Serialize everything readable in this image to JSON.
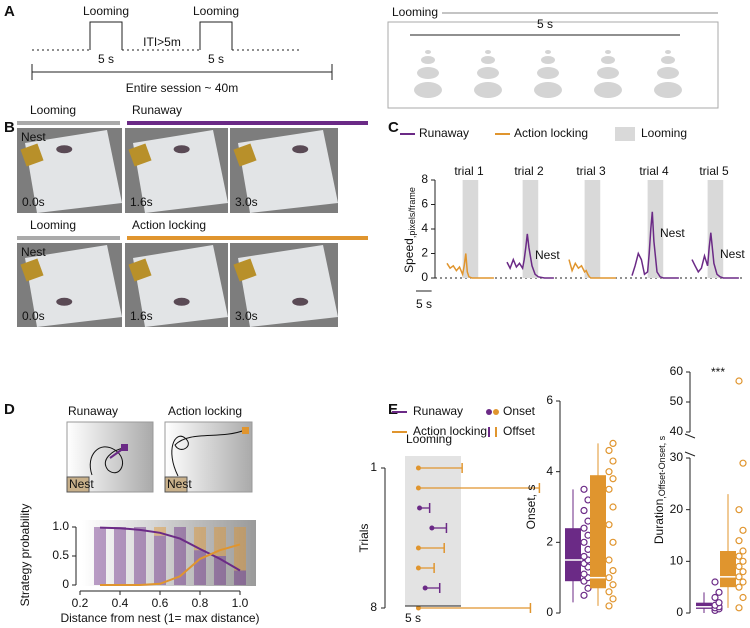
{
  "panel_labels": [
    "A",
    "B",
    "C",
    "D",
    "E"
  ],
  "panel_a": {
    "looming_1": "Looming",
    "looming_2": "Looming",
    "duration_1": "5 s",
    "duration_2": "5 s",
    "iti": "ITI>5m",
    "session": "Entire session ~ 40m",
    "schematic_title": "Looming",
    "schematic_duration": "5 s"
  },
  "panel_b": {
    "rows": [
      {
        "phase_1": "Looming",
        "phase_2": "Runaway",
        "color": "#6b2a86",
        "nest": "Nest",
        "times": [
          "0.0s",
          "1.6s",
          "3.0s"
        ]
      },
      {
        "phase_1": "Looming",
        "phase_2": "Action locking",
        "color": "#e0952e",
        "nest": "Nest",
        "times": [
          "0.0s",
          "1.6s",
          "3.0s"
        ]
      }
    ]
  },
  "chart_data": [
    {
      "type": "line",
      "legend": [
        {
          "name": "Runaway",
          "color": "#6b2a86"
        },
        {
          "name": "Action locking",
          "color": "#e0952e"
        },
        {
          "name": "Looming",
          "color": "#d9d9d9"
        }
      ],
      "ylabel": "Speed",
      "ylabel_subscript": ",pixels/frame",
      "ylim": [
        0,
        8
      ],
      "yticks": [
        0,
        2,
        4,
        6,
        8
      ],
      "xlim": [
        -5,
        11
      ],
      "looming_window": [
        0,
        5
      ],
      "scale_bar": {
        "value": 5,
        "label": "5 s"
      },
      "x": [
        -5,
        -4,
        -3,
        -2,
        -1,
        0,
        0.5,
        1,
        1.5,
        2,
        3,
        4,
        5,
        7,
        10
      ],
      "series": [
        {
          "name": "trial 1",
          "color": "#e0952e",
          "values": [
            1.2,
            0.8,
            1.0,
            0.6,
            0.9,
            0.3,
            1.0,
            2.0,
            0.5,
            0.1,
            0,
            0,
            0,
            0,
            0
          ]
        },
        {
          "name": "trial 2",
          "color": "#6b2a86",
          "annotation": "Nest",
          "values": [
            1.3,
            0.8,
            1.5,
            0.9,
            1.2,
            0.8,
            1.5,
            2.5,
            3.6,
            2.5,
            1.0,
            0.3,
            0.1,
            0,
            0
          ]
        },
        {
          "name": "trial 3",
          "color": "#e0952e",
          "values": [
            1.5,
            0.6,
            1.2,
            0.8,
            1.0,
            0.5,
            0.6,
            0.3,
            0.1,
            0,
            0,
            0,
            0,
            0,
            0
          ]
        },
        {
          "name": "trial 4",
          "color": "#6b2a86",
          "annotation": "Nest",
          "values": [
            0.2,
            1.0,
            2.0,
            1.5,
            0.3,
            0.5,
            2.0,
            4.0,
            5.4,
            3.0,
            0.5,
            0.1,
            0,
            0,
            0
          ]
        },
        {
          "name": "trial 5",
          "color": "#6b2a86",
          "annotation": "Nest",
          "values": [
            1.5,
            1.0,
            0.5,
            0.8,
            1.8,
            1.0,
            2.5,
            3.7,
            2.5,
            1.2,
            0.3,
            0.1,
            0,
            0,
            0
          ]
        }
      ]
    },
    {
      "type": "stacked_bar",
      "titles": [
        "Runaway",
        "Action locking"
      ],
      "nest_labels": [
        "Nest",
        "Nest"
      ],
      "xlabel": "Distance from nest (1= max distance)",
      "ylabel": "Strategy probability",
      "x": [
        0.3,
        0.4,
        0.5,
        0.6,
        0.7,
        0.8,
        0.9,
        1.0
      ],
      "bar_width": 0.06,
      "xlim": [
        0.2,
        1.05
      ],
      "xticks": [
        0.2,
        0.4,
        0.6,
        0.8,
        {
          "value": 1,
          "label": "1.0"
        }
      ],
      "ylim": [
        0,
        1.05
      ],
      "yticks": [
        0,
        0.5,
        {
          "value": 1,
          "label": "1.0"
        }
      ],
      "series": [
        {
          "name": "Runaway",
          "color": "#6b2a86",
          "values": [
            1,
            1,
            1,
            0.85,
            1,
            0.6,
            0.5,
            0.25
          ],
          "fit": [
            0.99,
            0.98,
            0.95,
            0.9,
            0.8,
            0.62,
            0.45,
            0.25
          ]
        },
        {
          "name": "Action locking",
          "color": "#e0952e",
          "values": [
            0,
            0,
            0,
            0.15,
            0,
            0.4,
            0.5,
            0.75
          ],
          "fit": [
            0,
            0,
            0,
            0.02,
            0.15,
            0.45,
            0.6,
            0.7
          ]
        }
      ]
    },
    {
      "type": "interval",
      "legend": [
        {
          "name": "Runaway",
          "color": "#6b2a86"
        },
        {
          "name": "Action locking",
          "color": "#e0952e"
        }
      ],
      "onset_label": "Onset",
      "offset_label": "Offset",
      "ylabel": "Trials",
      "yticks": [
        1,
        8
      ],
      "looming_label": "Looming",
      "xlim": [
        0,
        13
      ],
      "looming_window": [
        0,
        5
      ],
      "scale_bar": {
        "value": 5,
        "label": "5 s"
      },
      "trials": [
        {
          "color": "#e0952e",
          "onset": 1.2,
          "offset": 5.1
        },
        {
          "color": "#e0952e",
          "onset": 1.2,
          "offset": 12
        },
        {
          "color": "#6b2a86",
          "onset": 1.3,
          "offset": 2.2
        },
        {
          "color": "#6b2a86",
          "onset": 2.4,
          "offset": 3.7
        },
        {
          "color": "#e0952e",
          "onset": 1.2,
          "offset": 3.5
        },
        {
          "color": "#e0952e",
          "onset": 1.2,
          "offset": 2.6
        },
        {
          "color": "#6b2a86",
          "onset": 1.8,
          "offset": 3.1
        },
        {
          "color": "#e0952e",
          "onset": 1.2,
          "offset": 11.2
        }
      ]
    },
    {
      "type": "box",
      "ylabel": "Onset, s",
      "ylim": [
        0,
        6
      ],
      "yticks": [
        0,
        2,
        4,
        6
      ],
      "series": [
        {
          "color": "#6b2a86",
          "whisker_low": 0.3,
          "q1": 0.9,
          "median": 1.5,
          "q3": 2.4,
          "whisker_high": 3.5,
          "points": [
            0.5,
            0.7,
            0.9,
            1.0,
            1.1,
            1.3,
            1.4,
            1.5,
            1.6,
            1.8,
            2.0,
            2.2,
            2.4,
            2.6,
            2.9,
            3.2,
            3.5
          ]
        },
        {
          "color": "#e0952e",
          "whisker_low": 0.2,
          "q1": 0.7,
          "median": 1.0,
          "q3": 3.9,
          "whisker_high": 4.8,
          "points": [
            0.2,
            0.4,
            0.6,
            0.8,
            1.0,
            1.2,
            1.5,
            2.0,
            2.5,
            3.0,
            3.5,
            3.8,
            4.0,
            4.3,
            4.6,
            4.8
          ]
        }
      ]
    },
    {
      "type": "box",
      "ylabel": "Duration",
      "ylabel_subscript": ",Offset-Onset, s",
      "annotation": "***",
      "ylim": [
        0,
        60
      ],
      "axis_break": [
        30,
        40
      ],
      "yticks": [
        0,
        10,
        20,
        30,
        40,
        50,
        60
      ],
      "series": [
        {
          "color": "#6b2a86",
          "whisker_low": 0,
          "q1": 0.8,
          "median": 1.2,
          "q3": 2.0,
          "whisker_high": 4,
          "points": [
            0.5,
            0.8,
            1.0,
            1.2,
            1.5,
            2.0,
            3.0,
            4.0,
            6.0
          ]
        },
        {
          "color": "#e0952e",
          "whisker_low": 1,
          "q1": 5,
          "median": 7,
          "q3": 12,
          "whisker_high": 23,
          "points": [
            1,
            3,
            5,
            6,
            7,
            8,
            9,
            10,
            11,
            12,
            14,
            16,
            20,
            29,
            57
          ]
        }
      ]
    }
  ]
}
